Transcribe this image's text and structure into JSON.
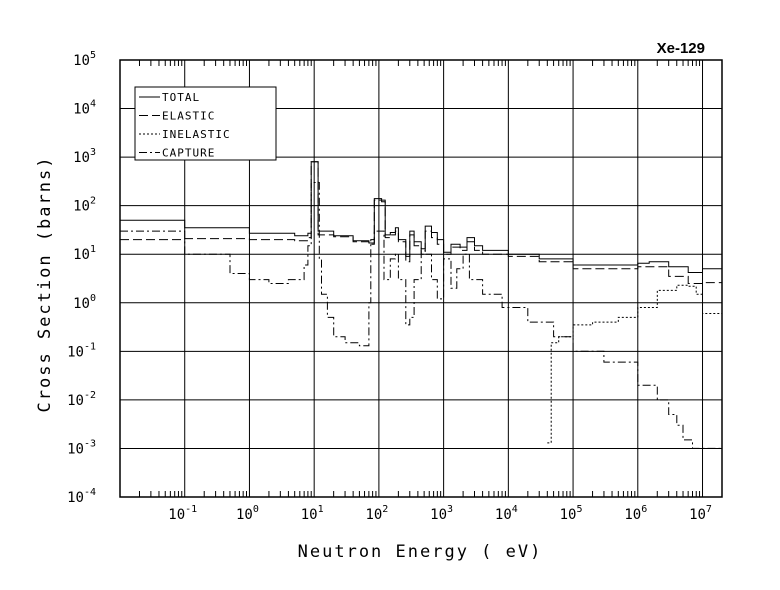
{
  "chart_data": {
    "type": "line",
    "title": "Xe-129",
    "xlabel": "Neutron Energy ( eV)",
    "ylabel": "Cross Section (barns)",
    "x_scale": "log",
    "y_scale": "log",
    "xlim": [
      0.01,
      20000000
    ],
    "ylim": [
      0.0001,
      100000
    ],
    "x_tick_labels": [
      {
        "base": "10",
        "exp": "-1"
      },
      {
        "base": "10",
        "exp": "0"
      },
      {
        "base": "10",
        "exp": "1"
      },
      {
        "base": "10",
        "exp": "2"
      },
      {
        "base": "10",
        "exp": "3"
      },
      {
        "base": "10",
        "exp": "4"
      },
      {
        "base": "10",
        "exp": "5"
      },
      {
        "base": "10",
        "exp": "6"
      },
      {
        "base": "10",
        "exp": "7"
      }
    ],
    "y_tick_labels": [
      {
        "base": "10",
        "exp": "-4"
      },
      {
        "base": "10",
        "exp": "-3"
      },
      {
        "base": "10",
        "exp": "-2"
      },
      {
        "base": "10",
        "exp": "-1"
      },
      {
        "base": "10",
        "exp": "0"
      },
      {
        "base": "10",
        "exp": "1"
      },
      {
        "base": "10",
        "exp": "2"
      },
      {
        "base": "10",
        "exp": "3"
      },
      {
        "base": "10",
        "exp": "4"
      },
      {
        "base": "10",
        "exp": "5"
      }
    ],
    "grid": true,
    "legend_position": "top-left",
    "series": [
      {
        "name": "TOTAL",
        "dash": "solid",
        "points": [
          [
            0.01,
            50
          ],
          [
            0.1,
            35
          ],
          [
            1,
            27
          ],
          [
            5,
            24
          ],
          [
            8,
            27
          ],
          [
            9,
            800
          ],
          [
            11,
            800
          ],
          [
            11.5,
            30
          ],
          [
            20,
            24
          ],
          [
            40,
            19
          ],
          [
            70,
            17
          ],
          [
            85,
            140
          ],
          [
            110,
            130
          ],
          [
            125,
            25
          ],
          [
            150,
            28
          ],
          [
            180,
            35
          ],
          [
            200,
            20
          ],
          [
            260,
            9
          ],
          [
            300,
            30
          ],
          [
            350,
            18
          ],
          [
            450,
            13
          ],
          [
            520,
            38
          ],
          [
            650,
            28
          ],
          [
            800,
            20
          ],
          [
            1000,
            11
          ],
          [
            1300,
            16
          ],
          [
            1800,
            14
          ],
          [
            2300,
            22
          ],
          [
            3000,
            15
          ],
          [
            4000,
            12
          ],
          [
            10000,
            10
          ],
          [
            30000,
            8
          ],
          [
            100000,
            6
          ],
          [
            300000,
            6
          ],
          [
            1000000,
            6.5
          ],
          [
            1500000,
            7
          ],
          [
            3000000,
            5.5
          ],
          [
            6000000,
            4.2
          ],
          [
            10000000,
            5
          ],
          [
            20000000,
            5
          ]
        ]
      },
      {
        "name": "ELASTIC",
        "dash": "long-dash",
        "points": [
          [
            0.01,
            20
          ],
          [
            0.1,
            21
          ],
          [
            1,
            20
          ],
          [
            5,
            19
          ],
          [
            8,
            22
          ],
          [
            9,
            800
          ],
          [
            11,
            800
          ],
          [
            11.5,
            25
          ],
          [
            20,
            23
          ],
          [
            40,
            18
          ],
          [
            70,
            16
          ],
          [
            85,
            130
          ],
          [
            110,
            120
          ],
          [
            125,
            22
          ],
          [
            150,
            25
          ],
          [
            180,
            30
          ],
          [
            200,
            18
          ],
          [
            260,
            7
          ],
          [
            300,
            25
          ],
          [
            350,
            15
          ],
          [
            450,
            10
          ],
          [
            520,
            30
          ],
          [
            650,
            22
          ],
          [
            800,
            16
          ],
          [
            1000,
            10
          ],
          [
            1300,
            14
          ],
          [
            1800,
            12
          ],
          [
            2300,
            18
          ],
          [
            3000,
            12
          ],
          [
            4000,
            10
          ],
          [
            10000,
            9
          ],
          [
            30000,
            7
          ],
          [
            100000,
            5
          ],
          [
            300000,
            5
          ],
          [
            1000000,
            5.5
          ],
          [
            1500000,
            5.5
          ],
          [
            3000000,
            3.5
          ],
          [
            6000000,
            2.5
          ],
          [
            10000000,
            2.6
          ],
          [
            20000000,
            3
          ]
        ]
      },
      {
        "name": "INELASTIC",
        "dash": "dotted",
        "points": [
          [
            40000,
            0.0013
          ],
          [
            45000,
            0.0013
          ],
          [
            46000,
            0.15
          ],
          [
            60000,
            0.2
          ],
          [
            100000,
            0.35
          ],
          [
            200000,
            0.4
          ],
          [
            500000,
            0.5
          ],
          [
            1000000,
            0.8
          ],
          [
            2000000,
            1.8
          ],
          [
            4000000,
            2.3
          ],
          [
            6000000,
            2.2
          ],
          [
            8000000,
            1.5
          ],
          [
            10000000,
            0.6
          ],
          [
            20000000,
            0.15
          ]
        ]
      },
      {
        "name": "CAPTURE",
        "dash": "dash-dot",
        "points": [
          [
            0.01,
            30
          ],
          [
            0.1,
            10
          ],
          [
            0.5,
            4
          ],
          [
            1,
            3
          ],
          [
            2,
            2.5
          ],
          [
            4,
            3
          ],
          [
            7,
            6
          ],
          [
            8,
            15
          ],
          [
            9,
            300
          ],
          [
            10,
            300
          ],
          [
            12,
            8
          ],
          [
            13,
            1.5
          ],
          [
            16,
            0.5
          ],
          [
            20,
            0.2
          ],
          [
            30,
            0.15
          ],
          [
            50,
            0.13
          ],
          [
            70,
            1
          ],
          [
            75,
            20
          ],
          [
            85,
            30
          ],
          [
            110,
            30
          ],
          [
            120,
            3
          ],
          [
            150,
            8
          ],
          [
            180,
            10
          ],
          [
            200,
            3
          ],
          [
            260,
            0.35
          ],
          [
            300,
            0.5
          ],
          [
            350,
            3
          ],
          [
            450,
            12
          ],
          [
            520,
            10
          ],
          [
            650,
            3
          ],
          [
            800,
            1.2
          ],
          [
            1000,
            8
          ],
          [
            1300,
            2
          ],
          [
            1600,
            5
          ],
          [
            2000,
            10
          ],
          [
            2500,
            3
          ],
          [
            4000,
            1.5
          ],
          [
            8000,
            0.8
          ],
          [
            20000,
            0.4
          ],
          [
            50000,
            0.2
          ],
          [
            100000,
            0.1
          ],
          [
            300000,
            0.06
          ],
          [
            1000000,
            0.02
          ],
          [
            2000000,
            0.01
          ],
          [
            3000000,
            0.005
          ],
          [
            4000000,
            0.003
          ],
          [
            5000000,
            0.0015
          ],
          [
            7000000,
            0.001
          ],
          [
            10000000,
            0.001
          ],
          [
            20000000,
            0.0013
          ]
        ]
      }
    ]
  }
}
